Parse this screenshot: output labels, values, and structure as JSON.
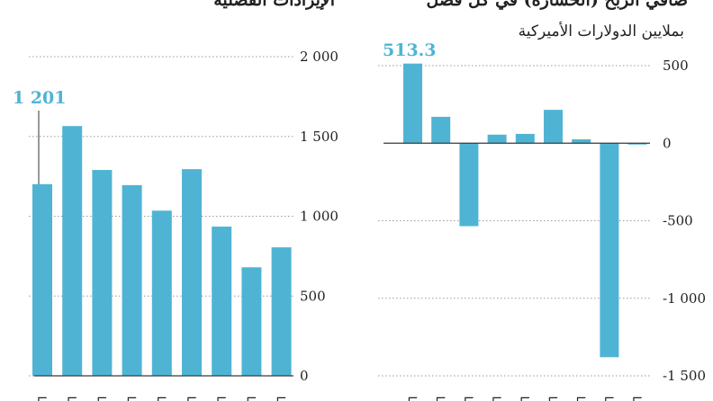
{
  "accent_color": "#4fb4d4",
  "right_panel": {
    "title": "صافي الربح (الخسارة) في كل فصل",
    "subtitle": "بملايين الدولارات الأميركية"
  },
  "left_panel": {
    "title": "الإيرادات الفصلية"
  },
  "chart_data": [
    {
      "type": "bar",
      "title": "صافي الربح (الخسارة) في كل فصل",
      "subtitle": "بملايين الدولارات الأميركية",
      "xlabel": "",
      "ylabel": "",
      "ylim": [
        -1500,
        500
      ],
      "yticks": [
        500,
        0,
        -500,
        -1000,
        -1500
      ],
      "ytick_labels": [
        "500",
        "0",
        "-500",
        "-1 000",
        "-1 500"
      ],
      "values": [
        513.3,
        170,
        -535,
        55,
        60,
        215,
        25,
        -1380,
        -5
      ],
      "highlight": {
        "index": 0,
        "label": "513.3"
      },
      "grid": "dotted-horizontal",
      "axis_side": "right",
      "categories_partial": "cut off at bottom edge"
    },
    {
      "type": "bar",
      "title": "الإيرادات الفصلية",
      "xlabel": "",
      "ylabel": "",
      "ylim": [
        0,
        2000
      ],
      "yticks": [
        2000,
        1500,
        1000,
        500,
        0
      ],
      "ytick_labels": [
        "2 000",
        "1 500",
        "1 000",
        "500",
        "0"
      ],
      "values": [
        1201,
        1565,
        1290,
        1195,
        1035,
        1295,
        935,
        680,
        805
      ],
      "highlight": {
        "index": 0,
        "label": "1 201"
      },
      "grid": "dotted-horizontal",
      "axis_side": "right",
      "categories_partial": "cut off at bottom edge"
    }
  ]
}
